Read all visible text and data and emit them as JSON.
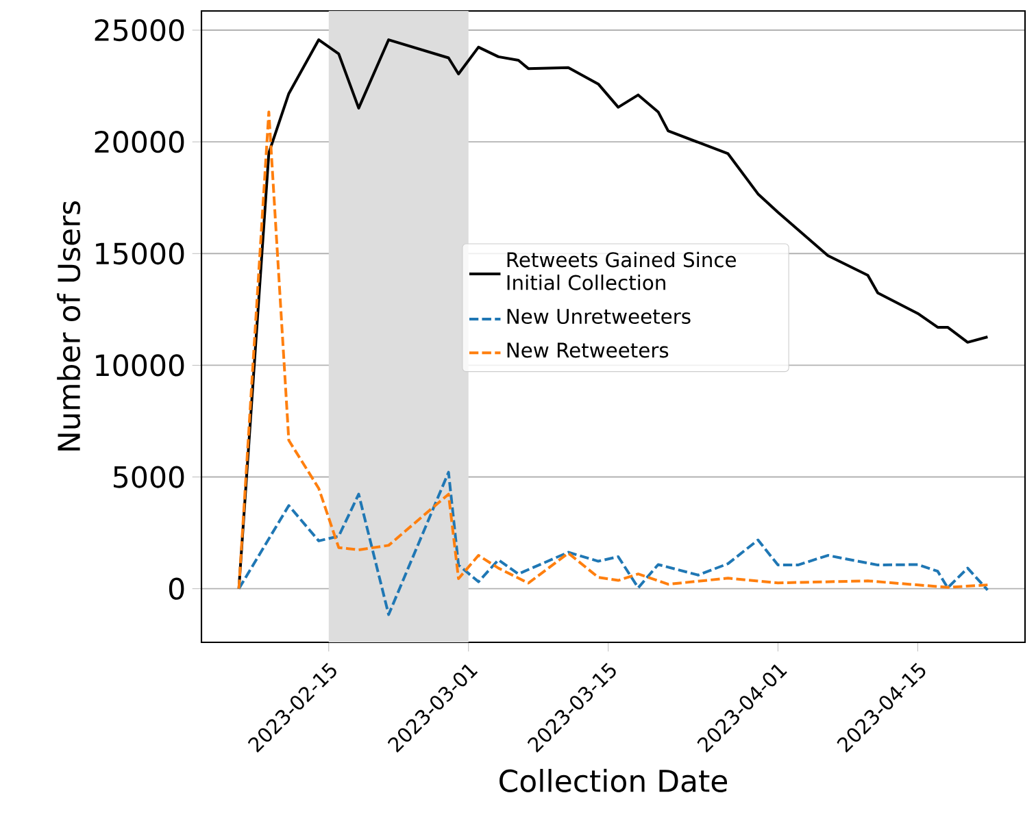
{
  "chart_data": {
    "type": "line",
    "xlabel": "Collection Date",
    "ylabel": "Number of Users",
    "xlim": [
      "2023-02-02T06:00",
      "2023-04-25T18:00"
    ],
    "ylim": [
      -2400,
      25860
    ],
    "xticks": [
      "2023-02-15",
      "2023-03-01",
      "2023-03-15",
      "2023-04-01",
      "2023-04-15"
    ],
    "yticks": [
      0,
      5000,
      10000,
      15000,
      20000,
      25000
    ],
    "grid": "y",
    "legend": "center",
    "bands": [
      {
        "axis": "x",
        "from": "2023-02-15",
        "to": "2023-03-01",
        "color": "#dddddd"
      }
    ],
    "series": [
      {
        "name": "Retweets Gained Since Initial Collection",
        "color": "#000000",
        "line_style": "solid",
        "x": [
          "2023-02-06",
          "2023-02-09",
          "2023-02-11",
          "2023-02-14",
          "2023-02-16",
          "2023-02-18",
          "2023-02-21",
          "2023-02-27",
          "2023-02-28",
          "2023-03-02",
          "2023-03-04",
          "2023-03-06",
          "2023-03-07",
          "2023-03-11",
          "2023-03-14",
          "2023-03-16",
          "2023-03-18",
          "2023-03-20",
          "2023-03-21",
          "2023-03-27",
          "2023-03-30",
          "2023-04-01",
          "2023-04-06",
          "2023-04-10",
          "2023-04-11",
          "2023-04-15",
          "2023-04-17",
          "2023-04-18",
          "2023-04-20",
          "2023-04-22"
        ],
        "values": [
          0,
          19500,
          22160,
          24570,
          23940,
          21510,
          24570,
          23760,
          23040,
          24240,
          23810,
          23650,
          23280,
          23320,
          22590,
          21550,
          22100,
          21340,
          20490,
          19470,
          17670,
          16850,
          14910,
          14030,
          13240,
          12320,
          11700,
          11700,
          11030,
          11270
        ]
      },
      {
        "name": "New Unretweeters",
        "color": "#1f77b4",
        "line_style": "dashed",
        "x": [
          "2023-02-06",
          "2023-02-11",
          "2023-02-14",
          "2023-02-16",
          "2023-02-18",
          "2023-02-21",
          "2023-02-27",
          "2023-02-28",
          "2023-03-02",
          "2023-03-04",
          "2023-03-06",
          "2023-03-11",
          "2023-03-14",
          "2023-03-16",
          "2023-03-18",
          "2023-03-20",
          "2023-03-24",
          "2023-03-27",
          "2023-03-30",
          "2023-04-01",
          "2023-04-03",
          "2023-04-06",
          "2023-04-11",
          "2023-04-15",
          "2023-04-17",
          "2023-04-18",
          "2023-04-20",
          "2023-04-22"
        ],
        "values": [
          0,
          3720,
          2140,
          2350,
          4230,
          -1160,
          5210,
          1060,
          310,
          1290,
          660,
          1630,
          1230,
          1430,
          40,
          1080,
          610,
          1120,
          2180,
          1060,
          1060,
          1490,
          1060,
          1080,
          780,
          40,
          920,
          -60
        ]
      },
      {
        "name": "New Retweeters",
        "color": "#ff7f0e",
        "line_style": "dashed",
        "x": [
          "2023-02-06",
          "2023-02-09",
          "2023-02-11",
          "2023-02-14",
          "2023-02-16",
          "2023-02-18",
          "2023-02-21",
          "2023-02-27",
          "2023-02-28",
          "2023-03-02",
          "2023-03-04",
          "2023-03-07",
          "2023-03-11",
          "2023-03-14",
          "2023-03-16",
          "2023-03-18",
          "2023-03-21",
          "2023-03-27",
          "2023-04-01",
          "2023-04-10",
          "2023-04-18",
          "2023-04-22"
        ],
        "values": [
          0,
          21340,
          6640,
          4490,
          1840,
          1740,
          1940,
          4230,
          450,
          1490,
          920,
          250,
          1590,
          510,
          370,
          660,
          200,
          470,
          260,
          350,
          60,
          170
        ]
      }
    ]
  }
}
